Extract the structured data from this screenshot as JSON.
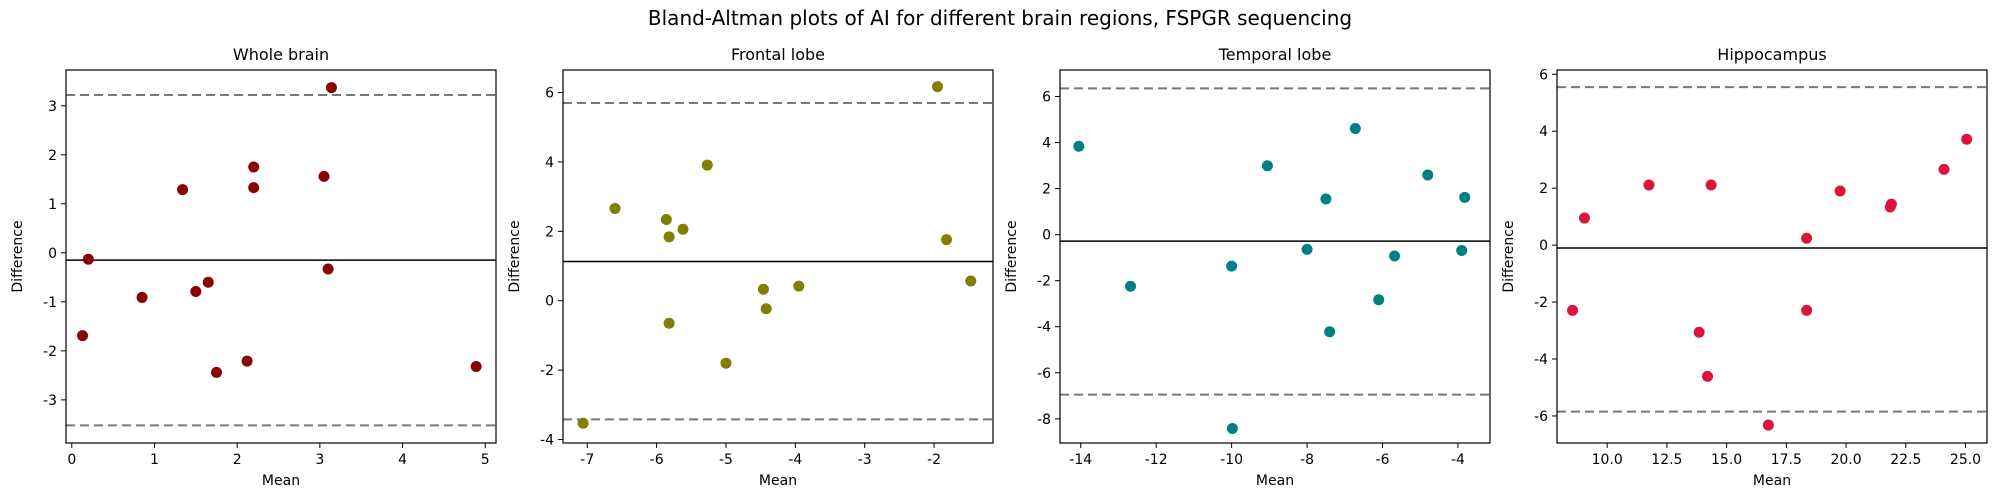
{
  "figure": {
    "title": "Bland-Altman plots of AI for different brain regions, FSPGR sequencing"
  },
  "chart_data": [
    {
      "type": "scatter",
      "title": "Whole brain",
      "xlabel": "Mean",
      "ylabel": "Difference",
      "color": "#8b0000",
      "xlim": [
        -0.07,
        5.13
      ],
      "ylim": [
        -3.88,
        3.73
      ],
      "xticks": [
        0,
        1,
        2,
        3,
        4,
        5
      ],
      "yticks": [
        -3,
        -2,
        -1,
        0,
        1,
        2,
        3
      ],
      "mean_diff": -0.15,
      "loa_upper": 3.22,
      "loa_lower": -3.52,
      "points": [
        [
          0.13,
          -1.69
        ],
        [
          0.2,
          -0.13
        ],
        [
          0.85,
          -0.91
        ],
        [
          1.34,
          1.29
        ],
        [
          1.5,
          -0.79
        ],
        [
          1.65,
          -0.6
        ],
        [
          1.75,
          -2.44
        ],
        [
          2.12,
          -2.21
        ],
        [
          2.2,
          1.75
        ],
        [
          2.2,
          1.33
        ],
        [
          3.05,
          1.56
        ],
        [
          3.1,
          -0.33
        ],
        [
          3.14,
          3.37
        ],
        [
          4.89,
          -2.32
        ]
      ]
    },
    {
      "type": "scatter",
      "title": "Frontal lobe",
      "xlabel": "Mean",
      "ylabel": "Difference",
      "color": "#808000",
      "xlim": [
        -7.35,
        -1.15
      ],
      "ylim": [
        -4.1,
        6.65
      ],
      "xticks": [
        -7,
        -6,
        -5,
        -4,
        -3,
        -2
      ],
      "yticks": [
        -4,
        -2,
        0,
        2,
        4,
        6
      ],
      "mean_diff": 1.13,
      "loa_upper": 5.7,
      "loa_lower": -3.42,
      "points": [
        [
          -7.06,
          -3.53
        ],
        [
          -6.6,
          2.66
        ],
        [
          -5.86,
          2.34
        ],
        [
          -5.82,
          1.84
        ],
        [
          -5.82,
          -0.65
        ],
        [
          -5.62,
          2.06
        ],
        [
          -5.27,
          3.91
        ],
        [
          -5.0,
          -1.8
        ],
        [
          -4.46,
          0.33
        ],
        [
          -4.42,
          -0.23
        ],
        [
          -3.95,
          0.42
        ],
        [
          -1.95,
          6.17
        ],
        [
          -1.82,
          1.76
        ],
        [
          -1.47,
          0.57
        ]
      ]
    },
    {
      "type": "scatter",
      "title": "Temporal lobe",
      "xlabel": "Mean",
      "ylabel": "Difference",
      "color": "#008080",
      "xlim": [
        -14.55,
        -3.15
      ],
      "ylim": [
        -9.05,
        7.15
      ],
      "xticks": [
        -14,
        -12,
        -10,
        -8,
        -6,
        -4
      ],
      "yticks": [
        -8,
        -6,
        -4,
        -2,
        0,
        2,
        4,
        6
      ],
      "mean_diff": -0.28,
      "loa_upper": 6.35,
      "loa_lower": -6.95,
      "points": [
        [
          -14.05,
          3.84
        ],
        [
          -12.68,
          -2.24
        ],
        [
          -10.0,
          -1.37
        ],
        [
          -9.98,
          -8.42
        ],
        [
          -9.05,
          2.99
        ],
        [
          -8.0,
          -0.64
        ],
        [
          -7.5,
          1.55
        ],
        [
          -7.4,
          -4.22
        ],
        [
          -6.72,
          4.61
        ],
        [
          -6.1,
          -2.83
        ],
        [
          -5.68,
          -0.93
        ],
        [
          -4.8,
          2.59
        ],
        [
          -3.9,
          -0.69
        ],
        [
          -3.82,
          1.62
        ]
      ]
    },
    {
      "type": "scatter",
      "title": "Hippocampus",
      "xlabel": "Mean",
      "ylabel": "Difference",
      "color": "#dc143c",
      "xlim": [
        7.9,
        25.9
      ],
      "ylim": [
        -6.95,
        6.15
      ],
      "xticks": [
        10.0,
        12.5,
        15.0,
        17.5,
        20.0,
        22.5,
        25.0
      ],
      "yticks": [
        -6,
        -4,
        -2,
        0,
        2,
        4,
        6
      ],
      "mean_diff": -0.1,
      "loa_upper": 5.55,
      "loa_lower": -5.85,
      "points": [
        [
          8.55,
          -2.29
        ],
        [
          9.05,
          0.95
        ],
        [
          11.75,
          2.11
        ],
        [
          13.85,
          -3.06
        ],
        [
          14.2,
          -4.61
        ],
        [
          14.35,
          2.11
        ],
        [
          16.75,
          -6.32
        ],
        [
          18.35,
          0.24
        ],
        [
          18.35,
          -2.29
        ],
        [
          19.75,
          1.9
        ],
        [
          21.85,
          1.34
        ],
        [
          21.9,
          1.44
        ],
        [
          24.1,
          2.66
        ],
        [
          25.05,
          3.72
        ]
      ]
    }
  ]
}
